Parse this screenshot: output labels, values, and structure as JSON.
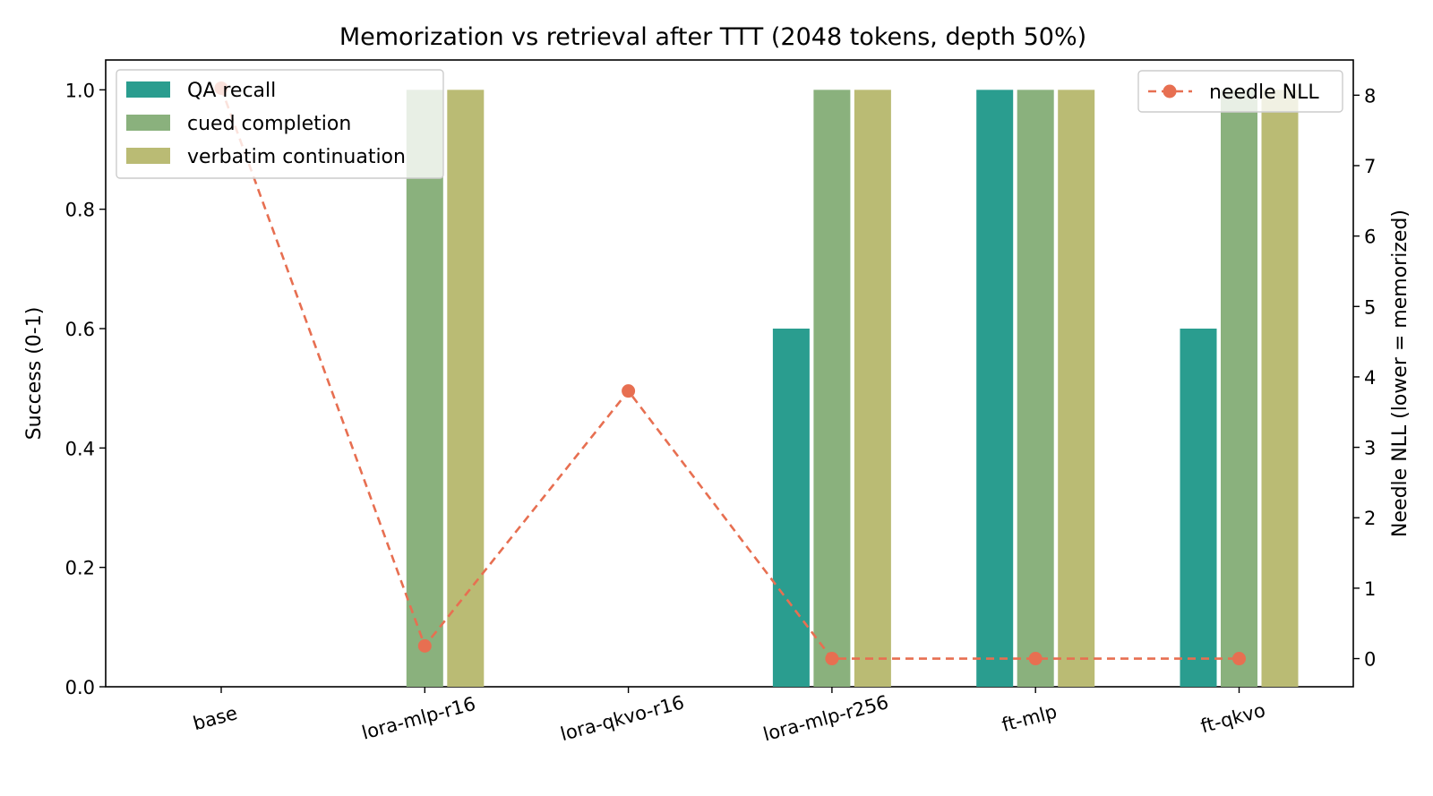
{
  "chart_data": {
    "type": "bar",
    "title": "Memorization vs retrieval after TTT (2048 tokens, depth 50%)",
    "categories": [
      "base",
      "lora-mlp-r16",
      "lora-qkvo-r16",
      "lora-mlp-r256",
      "ft-mlp",
      "ft-qkvo"
    ],
    "series": [
      {
        "name": "QA recall",
        "color": "#2a9d8f",
        "values": [
          0,
          0,
          0,
          0.6,
          1.0,
          0.6
        ]
      },
      {
        "name": "cued completion",
        "color": "#8ab17d",
        "values": [
          0,
          1.0,
          0,
          1.0,
          1.0,
          1.0
        ]
      },
      {
        "name": "verbatim continuation",
        "color": "#babb74",
        "values": [
          0,
          1.0,
          0,
          1.0,
          1.0,
          1.0
        ]
      }
    ],
    "secondary_series": {
      "name": "needle NLL",
      "type": "line",
      "style": "dashed with circle markers",
      "color": "#e76f51",
      "values": [
        8.1,
        0.18,
        3.8,
        0.0,
        0.0,
        0.0
      ]
    },
    "ylabel": "Success (0-1)",
    "ylim": [
      0,
      1.05
    ],
    "yticks": [
      "0.0",
      "0.2",
      "0.4",
      "0.6",
      "0.8",
      "1.0"
    ],
    "y2label": "Needle NLL (lower = memorized)",
    "y2label_color": "#e76f51",
    "y2lim": [
      -0.4,
      8.5
    ],
    "y2ticks": [
      "0",
      "1",
      "2",
      "3",
      "4",
      "5",
      "6",
      "7",
      "8"
    ],
    "xlabel": "",
    "xtick_rotation": "about 15 degrees",
    "grid": false,
    "legend_primary": "top-left",
    "legend_secondary": "top-right"
  }
}
